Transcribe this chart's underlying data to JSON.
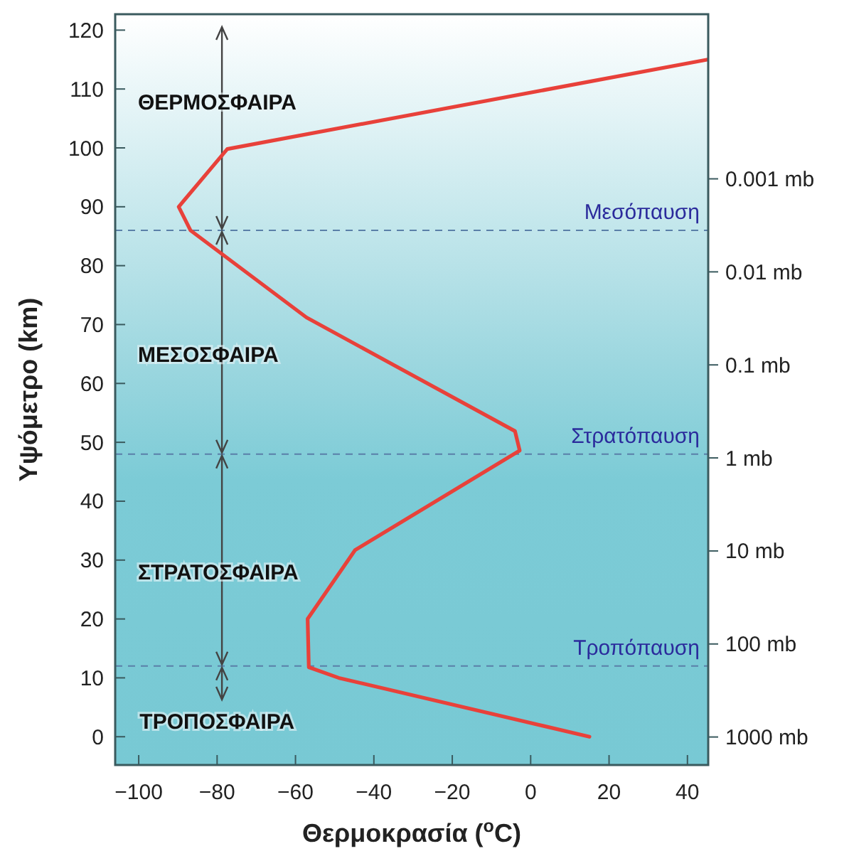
{
  "chart_data": {
    "type": "line",
    "xlabel": "Θερμοκρασία ($^{o}$C)",
    "ylabel": "Υψόμετρο (km)",
    "series": [
      {
        "color": "#e8413a",
        "x": [
          15,
          -49,
          -56.6,
          -56.9,
          -44.8,
          -2.8,
          -4,
          -57.2,
          -86.8,
          -89.8,
          -77.4,
          45.2
        ],
        "values": [
          0,
          10,
          11.8,
          20,
          31.7,
          48.6,
          51.9,
          71.2,
          86,
          90,
          99.8,
          115
        ]
      }
    ],
    "xlim": [
      -106,
      45.3
    ],
    "xticks": [
      {
        "value": -100,
        "label": "−100"
      },
      {
        "value": -80,
        "label": "−80"
      },
      {
        "value": -60,
        "label": "−60"
      },
      {
        "value": -40,
        "label": "−40"
      },
      {
        "value": -20,
        "label": "−20"
      },
      0,
      20,
      40
    ],
    "ylim": [
      -4.8,
      122.7
    ],
    "yticks": [
      0,
      10,
      20,
      30,
      40,
      50,
      60,
      70,
      80,
      90,
      100,
      110,
      120
    ],
    "y2lim": [
      2000,
      1.7e-05
    ],
    "y2ticks": [
      {
        "value": 0.001,
        "label": "0.001 mb"
      },
      {
        "value": 0.01,
        "label": "0.01 mb"
      },
      {
        "value": 0.1,
        "label": "0.1 mb"
      },
      {
        "value": 1,
        "label": "1 mb"
      },
      {
        "value": 10,
        "label": "10 mb"
      },
      {
        "value": 100,
        "label": "100 mb"
      },
      {
        "value": 1000,
        "label": "1000 mb"
      }
    ],
    "log": "y2",
    "ref_lines": [
      {
        "axis": "y",
        "value": 86,
        "label": "Μεσόπαυση",
        "color": "#5a7fa8",
        "line_style": "dashed"
      },
      {
        "axis": "y",
        "value": 48,
        "label": "Στρατόπαυση",
        "color": "#5a7fa8",
        "line_style": "dashed"
      },
      {
        "axis": "y",
        "value": 12,
        "label": "Τροπόπαυση",
        "color": "#5a7fa8",
        "line_style": "dashed"
      }
    ],
    "annotations": [
      "ΘΕΡΜΟΣΦΑΙΡΑ",
      "ΜΕΣΟΣΦΑΙΡΑ",
      "ΣΤΡΑΤΟΣΦΑΙΡΑ",
      {
        "text": "ΤΡΟΠΟΣΦΑΙΡΑ",
        "x": -78,
        "y": 12
      }
    ],
    "grid": false,
    "marker": "none",
    "line_style": "solid"
  }
}
